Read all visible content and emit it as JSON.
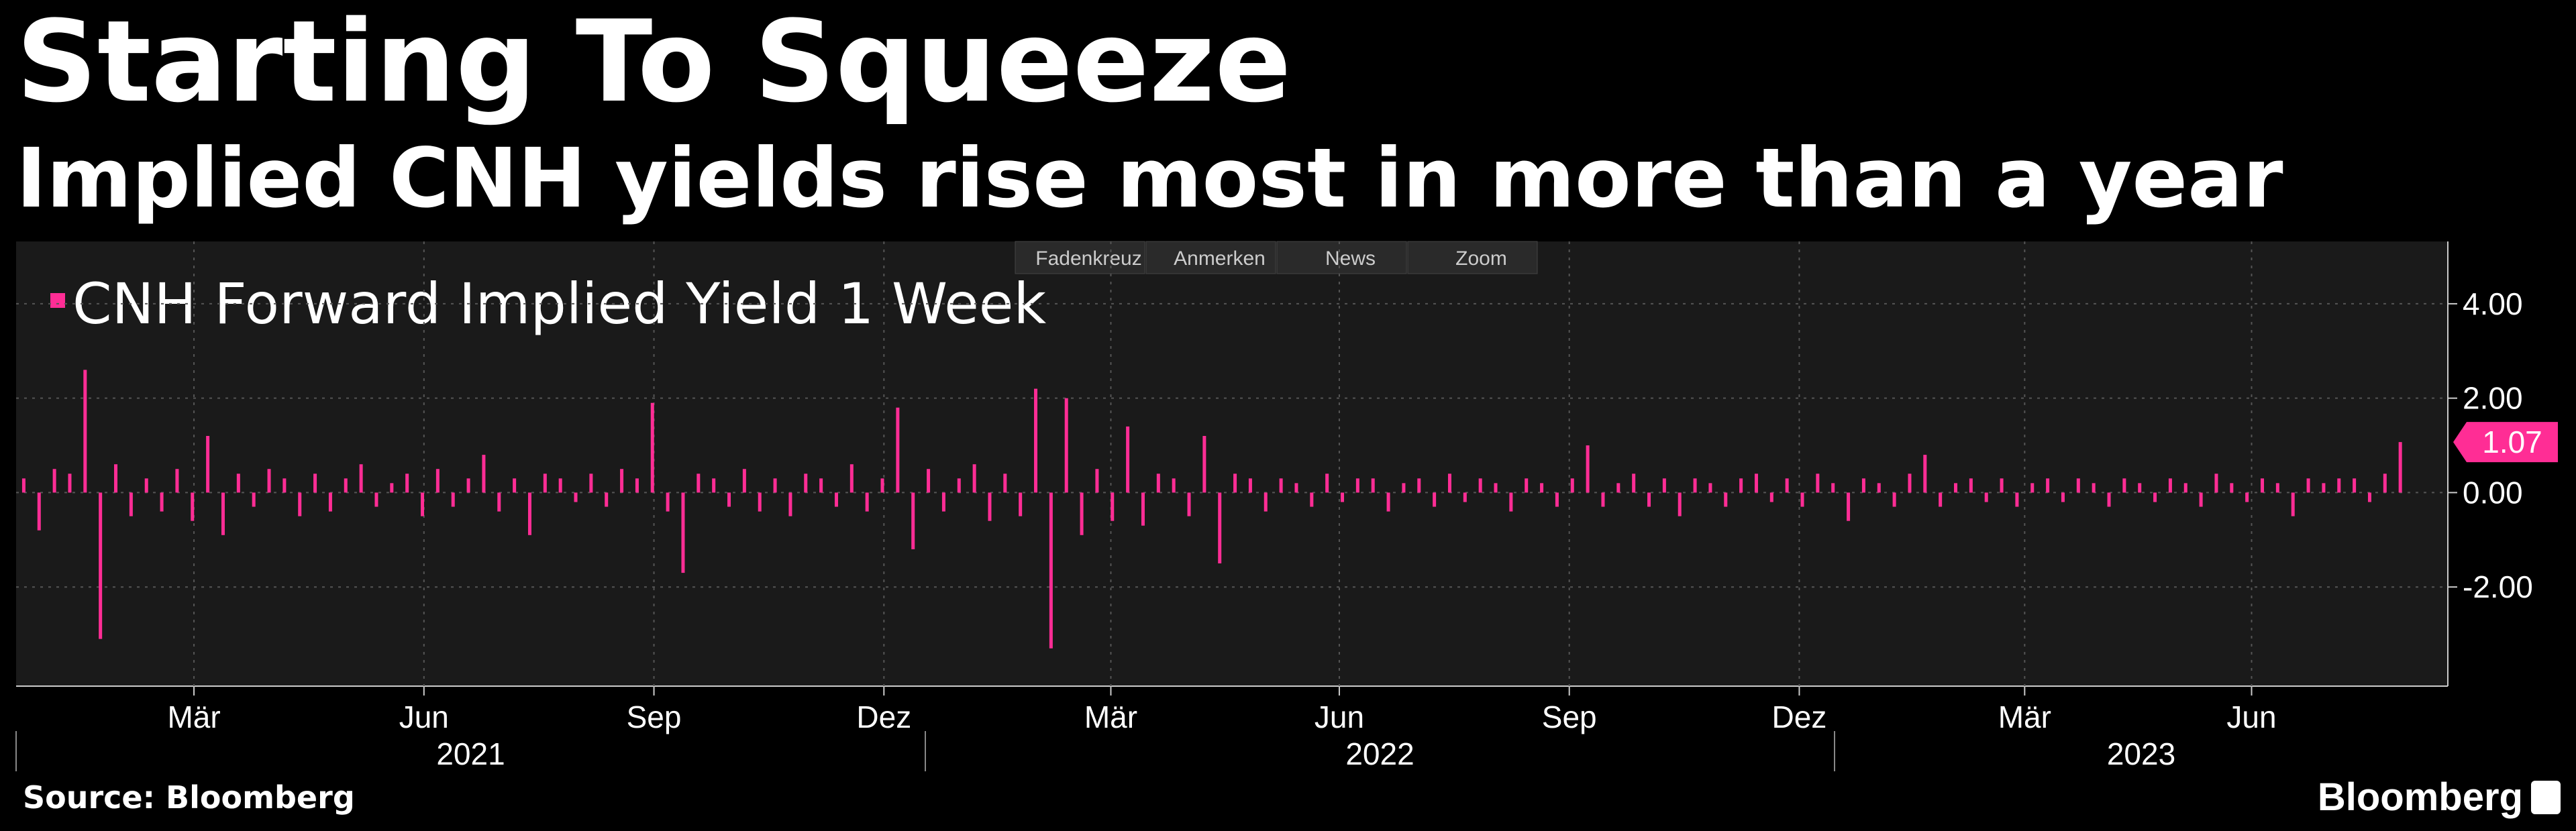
{
  "chart_data": {
    "type": "bar",
    "title": "Starting To Squeeze",
    "subtitle": "Implied CNH yields rise most in more than a year",
    "legend": "CNH Forward Implied Yield 1 Week",
    "color": "#ff2d95",
    "toolbar": [
      "Fadenkreuz",
      "Anmerken",
      "News",
      "Zoom"
    ],
    "values": [
      0.3,
      -0.8,
      0.5,
      0.4,
      2.6,
      -3.1,
      0.6,
      -0.5,
      0.3,
      -0.4,
      0.5,
      -0.6,
      1.2,
      -0.9,
      0.4,
      -0.3,
      0.5,
      0.3,
      -0.5,
      0.4,
      -0.4,
      0.3,
      0.6,
      -0.3,
      0.2,
      0.4,
      -0.5,
      0.5,
      -0.3,
      0.3,
      0.8,
      -0.4,
      0.3,
      -0.9,
      0.4,
      0.3,
      -0.2,
      0.4,
      -0.3,
      0.5,
      0.3,
      1.9,
      -0.4,
      -1.7,
      0.4,
      0.3,
      -0.3,
      0.5,
      -0.4,
      0.3,
      -0.5,
      0.4,
      0.3,
      -0.3,
      0.6,
      -0.4,
      0.3,
      1.8,
      -1.2,
      0.5,
      -0.4,
      0.3,
      0.6,
      -0.6,
      0.4,
      -0.5,
      2.2,
      -3.3,
      2.0,
      -0.9,
      0.5,
      -0.6,
      1.4,
      -0.7,
      0.4,
      0.3,
      -0.5,
      1.2,
      -1.5,
      0.4,
      0.3,
      -0.4,
      0.3,
      0.2,
      -0.3,
      0.4,
      -0.2,
      0.3,
      0.3,
      -0.4,
      0.2,
      0.3,
      -0.3,
      0.4,
      -0.2,
      0.3,
      0.2,
      -0.4,
      0.3,
      0.2,
      -0.3,
      0.3,
      1.0,
      -0.3,
      0.2,
      0.4,
      -0.3,
      0.3,
      -0.5,
      0.3,
      0.2,
      -0.3,
      0.3,
      0.4,
      -0.2,
      0.3,
      -0.3,
      0.4,
      0.2,
      -0.6,
      0.3,
      0.2,
      -0.3,
      0.4,
      0.8,
      -0.3,
      0.2,
      0.3,
      -0.2,
      0.3,
      -0.3,
      0.2,
      0.3,
      -0.2,
      0.3,
      0.2,
      -0.3,
      0.3,
      0.2,
      -0.2,
      0.3,
      0.2,
      -0.3,
      0.4,
      0.2,
      -0.2,
      0.3,
      0.2,
      -0.5,
      0.3,
      0.2,
      0.3,
      0.3,
      -0.2,
      0.4,
      1.07
    ],
    "last_label": "1.07",
    "xlim": [
      -0.5,
      158.1
    ],
    "xticks": [
      {
        "value": 11.1,
        "label": "Mär"
      },
      {
        "value": 26.1,
        "label": "Jun"
      },
      {
        "value": 41.1,
        "label": "Sep"
      },
      {
        "value": 56.1,
        "label": "Dez"
      },
      {
        "value": 70.9,
        "label": "Mär"
      },
      {
        "value": 85.8,
        "label": "Jun"
      },
      {
        "value": 100.8,
        "label": "Sep"
      },
      {
        "value": 115.8,
        "label": "Dez"
      },
      {
        "value": 130.5,
        "label": "Mär"
      },
      {
        "value": 145.3,
        "label": "Jun"
      }
    ],
    "xgroups": [
      {
        "label": "2021",
        "range": [
          -0.5,
          58.8
        ]
      },
      {
        "label": "2022",
        "range": [
          58.8,
          118.1
        ]
      },
      {
        "label": "2023",
        "range": [
          118.1,
          158.1
        ]
      }
    ],
    "ylim": [
      -4.1,
      5.32
    ],
    "yticks": [
      {
        "value": -2,
        "label": "-2.00"
      },
      {
        "value": 0,
        "label": "0.00"
      },
      {
        "value": 2,
        "label": "2.00"
      },
      {
        "value": 4,
        "label": "4.00"
      }
    ],
    "grid": true,
    "source": "Source: Bloomberg",
    "brand": "Bloomberg"
  }
}
